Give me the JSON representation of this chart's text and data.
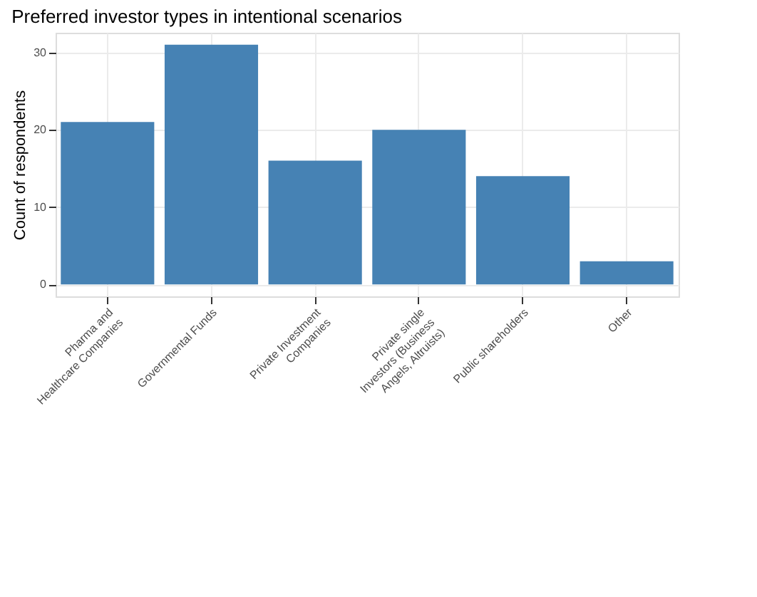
{
  "chart_data": {
    "type": "bar",
    "title": "Preferred investor types in intentional scenarios",
    "ylabel": "Count of respondents",
    "categories": [
      "Pharma and\nHealthcare Companies",
      "Governmental Funds",
      "Private Investment\nCompanies",
      "Private single\nInvestors (Business\nAngels, Altruists)",
      "Public shareholders",
      "Other"
    ],
    "values": [
      21,
      31,
      16,
      20,
      14,
      3
    ],
    "color": "#4682b4",
    "ylim": [
      -1.55,
      32.55
    ],
    "yticks": [
      0,
      10,
      20,
      30
    ],
    "grid": true
  }
}
